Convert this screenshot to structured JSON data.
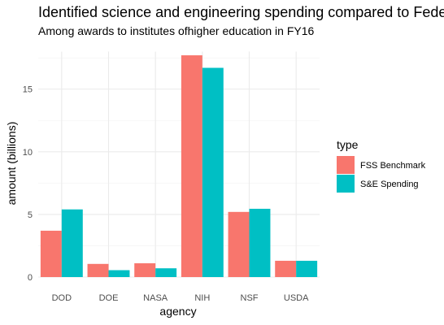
{
  "chart_data": {
    "type": "bar",
    "title": "Identified science and engineering spending compared to Federal",
    "subtitle": "Among awards to institutes ofhigher education in FY16",
    "xlabel": "agency",
    "ylabel": "amount (billions)",
    "categories": [
      "DOD",
      "DOE",
      "NASA",
      "NIH",
      "NSF",
      "USDA"
    ],
    "series": [
      {
        "name": "FSS Benchmark",
        "color": "#F8766D",
        "values": [
          3.7,
          1.05,
          1.1,
          17.7,
          5.2,
          1.3
        ]
      },
      {
        "name": "S&E Spending",
        "color": "#00BFC4",
        "values": [
          5.4,
          0.55,
          0.7,
          16.7,
          5.45,
          1.3
        ]
      }
    ],
    "ylim": [
      0,
      18
    ],
    "yticks": [
      0,
      5,
      10,
      15
    ],
    "grid": true,
    "legend": {
      "title": "type",
      "placement": "right"
    }
  }
}
